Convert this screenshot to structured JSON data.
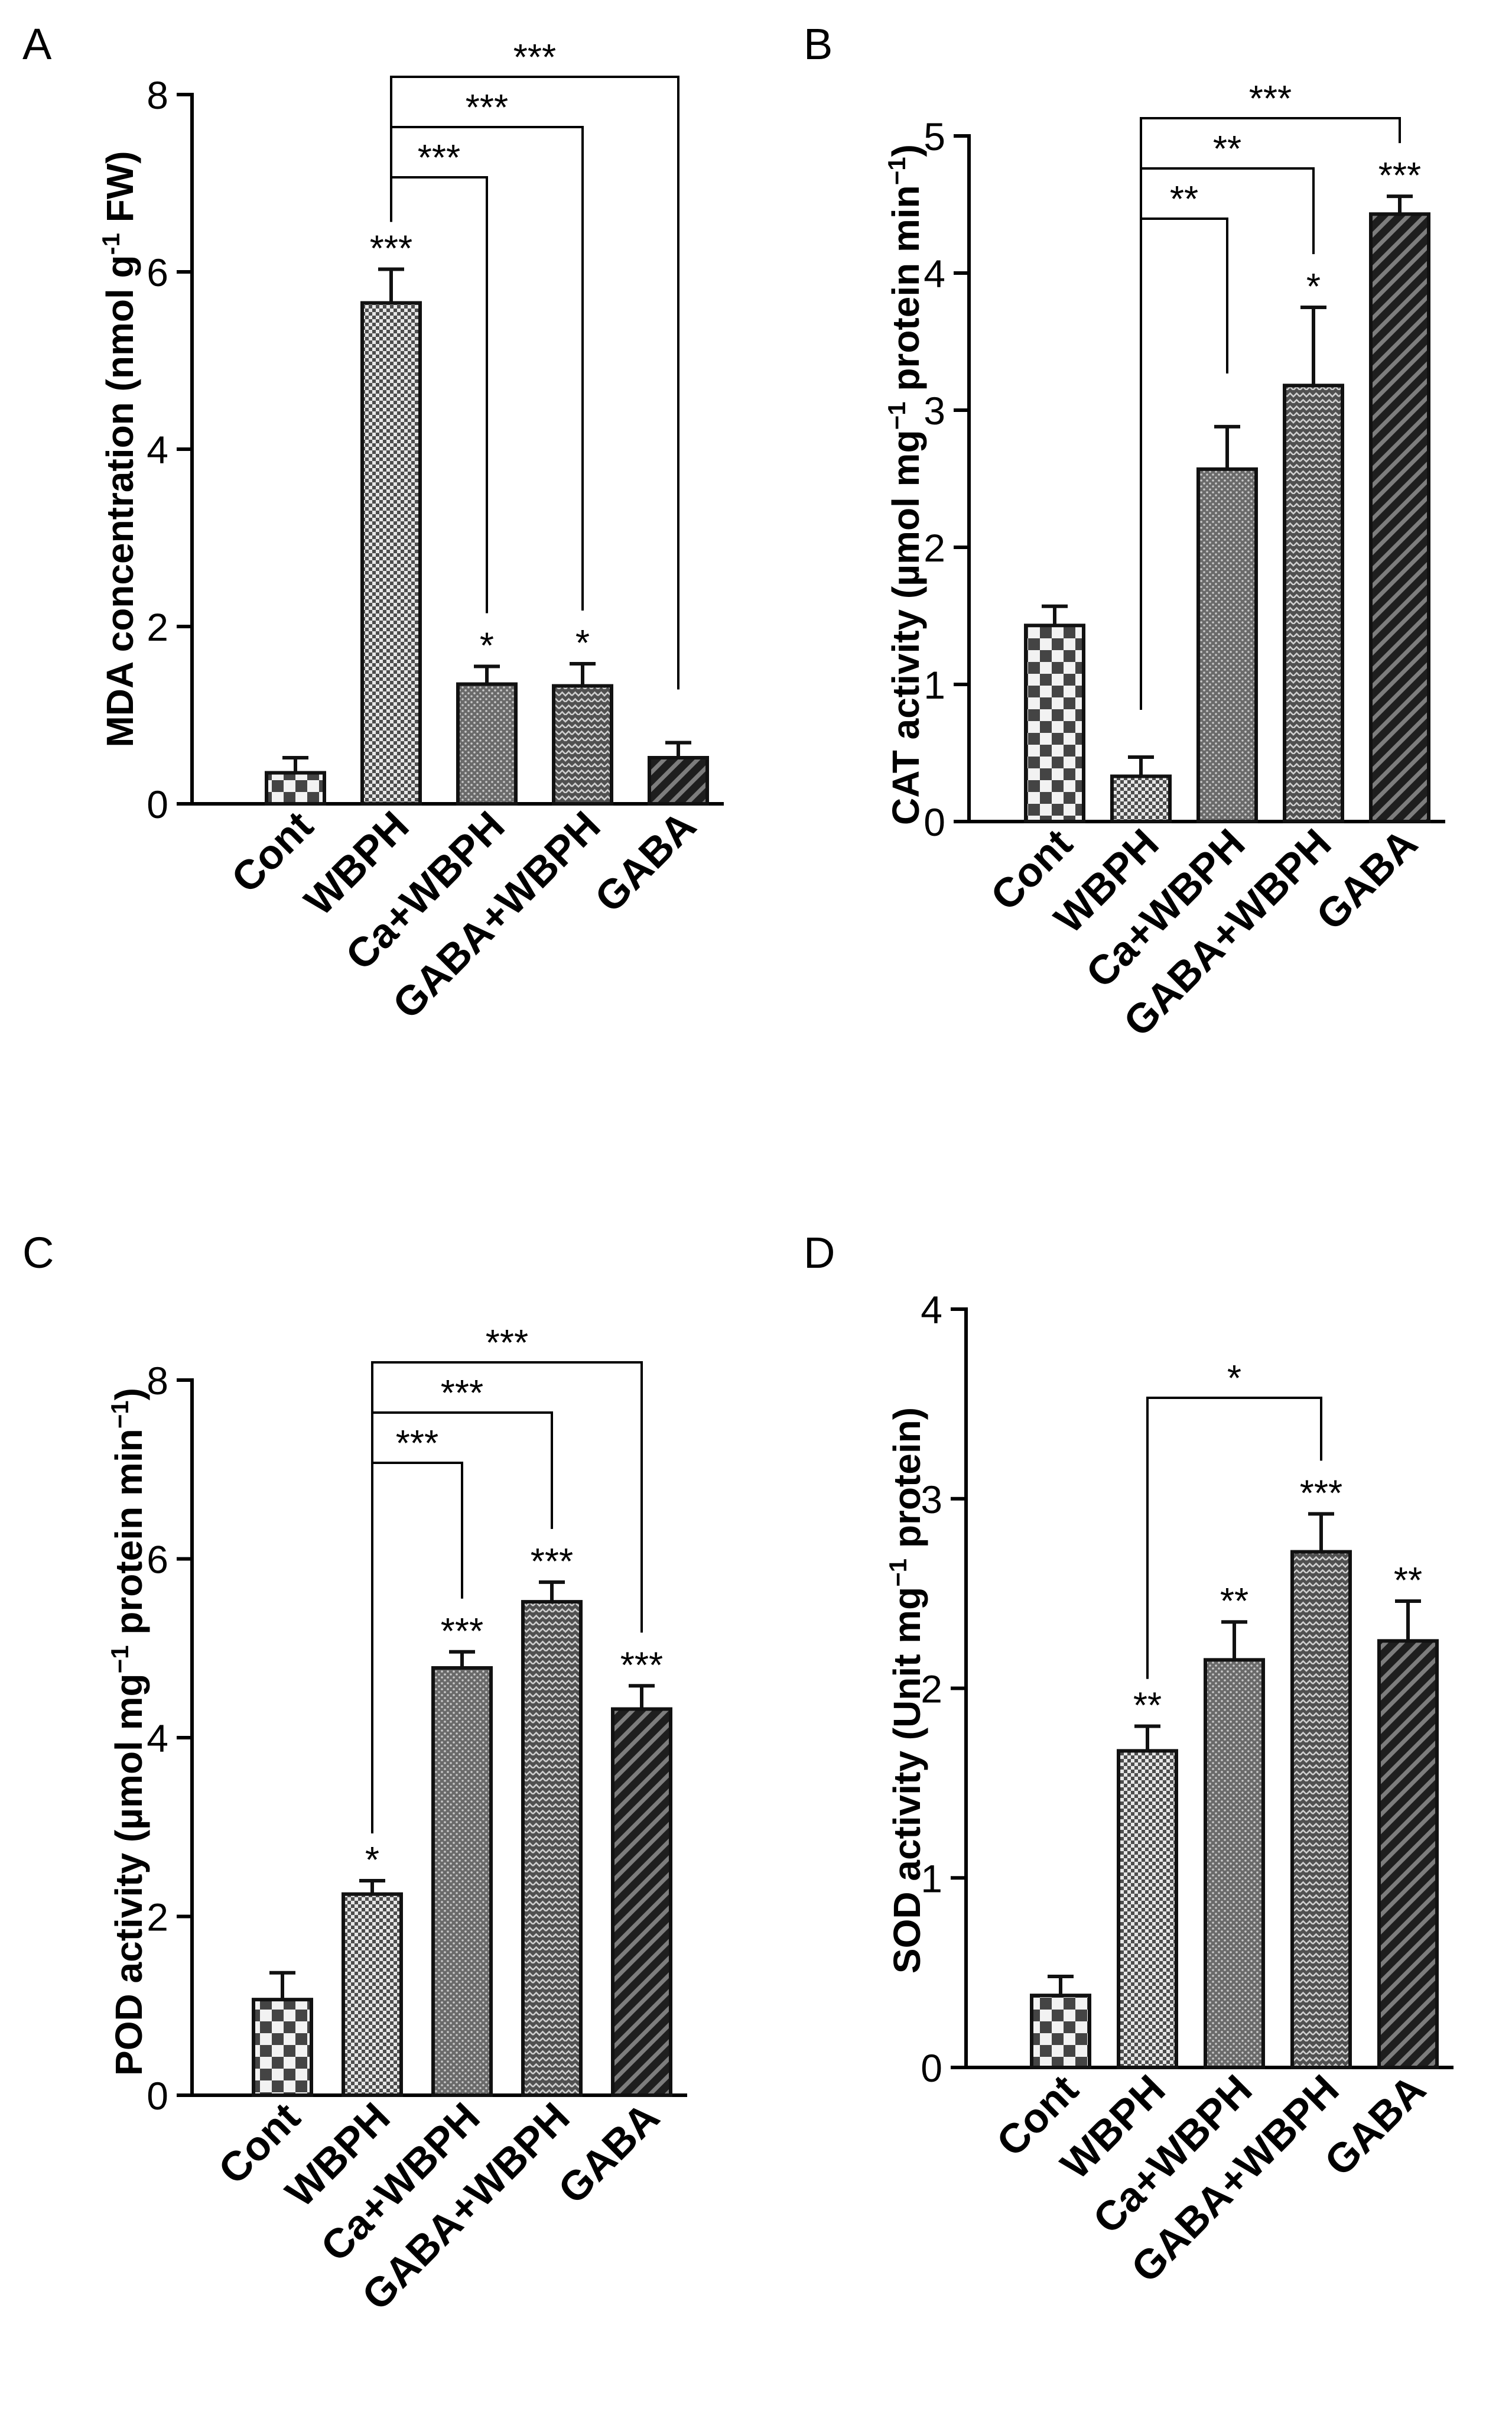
{
  "figure": {
    "colors": {
      "axis": "#000000",
      "bar_outline": "#111111"
    },
    "panels": [
      {
        "letter": "A",
        "chart_data": {
          "type": "bar",
          "ylabel_parts": [
            "MDA concentration (nmol g",
            "-1",
            " FW)"
          ],
          "ylim": [
            0,
            8
          ],
          "yticks": [
            0,
            2,
            4,
            6,
            8
          ],
          "categories": [
            "Cont",
            "WBPH",
            "Ca+WBPH",
            "GABA+WBPH",
            "GABA"
          ],
          "values": [
            0.35,
            5.65,
            1.35,
            1.33,
            0.52
          ],
          "errors": [
            0.17,
            0.38,
            0.2,
            0.25,
            0.17
          ],
          "fills": [
            "checker",
            "fine-checker",
            "dots",
            "herringbone",
            "diagonal"
          ],
          "bar_stars": [
            "",
            "***",
            "*",
            "*",
            ""
          ],
          "brackets": [
            {
              "from": 1,
              "to": 2,
              "label": "***"
            },
            {
              "from": 1,
              "to": 3,
              "label": "***"
            },
            {
              "from": 1,
              "to": 4,
              "label": "***"
            }
          ]
        }
      },
      {
        "letter": "B",
        "chart_data": {
          "type": "bar",
          "ylabel_parts": [
            "CAT activity (µmol mg",
            "−1",
            " protein min",
            "−1",
            ")"
          ],
          "ylim": [
            0,
            5
          ],
          "yticks": [
            0,
            1,
            2,
            3,
            4,
            5
          ],
          "categories": [
            "Cont",
            "WBPH",
            "Ca+WBPH",
            "GABA+WBPH",
            "GABA"
          ],
          "values": [
            1.43,
            0.33,
            2.57,
            3.18,
            4.43
          ],
          "errors": [
            0.14,
            0.14,
            0.31,
            0.57,
            0.13
          ],
          "fills": [
            "checker",
            "fine-checker",
            "dots",
            "herringbone",
            "diagonal"
          ],
          "bar_stars": [
            "",
            "",
            "",
            "*",
            "***"
          ],
          "brackets": [
            {
              "from": 1,
              "to": 2,
              "label": "**"
            },
            {
              "from": 1,
              "to": 3,
              "label": "**"
            },
            {
              "from": 1,
              "to": 4,
              "label": "***"
            }
          ]
        }
      },
      {
        "letter": "C",
        "chart_data": {
          "type": "bar",
          "ylabel_parts": [
            "POD activity (µmol mg",
            "−1",
            " protein min",
            "−1",
            ")"
          ],
          "ylim": [
            0,
            8
          ],
          "yticks": [
            0,
            2,
            4,
            6,
            8
          ],
          "categories": [
            "Cont",
            "WBPH",
            "Ca+WBPH",
            "GABA+WBPH",
            "GABA"
          ],
          "values": [
            1.07,
            2.25,
            4.78,
            5.52,
            4.32
          ],
          "errors": [
            0.3,
            0.15,
            0.18,
            0.22,
            0.26
          ],
          "fills": [
            "checker",
            "fine-checker",
            "dots",
            "herringbone",
            "diagonal"
          ],
          "bar_stars": [
            "",
            "*",
            "***",
            "***",
            "***"
          ],
          "brackets": [
            {
              "from": 1,
              "to": 2,
              "label": "***"
            },
            {
              "from": 1,
              "to": 3,
              "label": "***"
            },
            {
              "from": 1,
              "to": 4,
              "label": "***"
            }
          ]
        }
      },
      {
        "letter": "D",
        "chart_data": {
          "type": "bar",
          "ylabel_parts": [
            "SOD activity (Unit mg",
            "−1",
            " protein)"
          ],
          "ylim": [
            0,
            4
          ],
          "yticks": [
            0,
            1,
            2,
            3,
            4
          ],
          "categories": [
            "Cont",
            "WBPH",
            "Ca+WBPH",
            "GABA+WBPH",
            "GABA"
          ],
          "values": [
            0.38,
            1.67,
            2.15,
            2.72,
            2.25
          ],
          "errors": [
            0.1,
            0.13,
            0.2,
            0.2,
            0.21
          ],
          "fills": [
            "checker",
            "fine-checker",
            "dots",
            "herringbone",
            "diagonal"
          ],
          "bar_stars": [
            "",
            "**",
            "**",
            "***",
            "**"
          ],
          "brackets": [
            {
              "from": 1,
              "to": 3,
              "label": "*"
            }
          ]
        }
      }
    ]
  }
}
